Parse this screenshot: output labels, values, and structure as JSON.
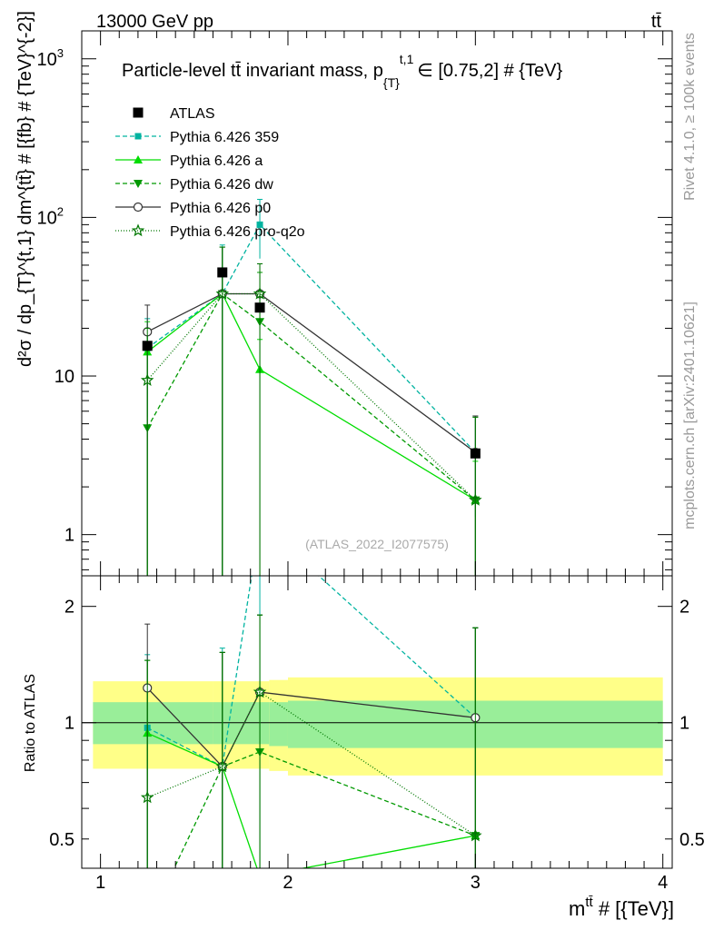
{
  "header": {
    "left": "13000 GeV pp",
    "right": "tt̄"
  },
  "side_labels": {
    "top": "Rivet 4.1.0, ≥ 100k events",
    "bottom": "mcplots.cern.ch [arXiv:2401.10621]"
  },
  "watermark": "(ATLAS_2022_I2077575)",
  "colors": {
    "atlas": "#000000",
    "p359": "#00b3a0",
    "pa": "#00dd00",
    "pdw": "#009900",
    "pp0": "#333333",
    "pq2o": "#007700",
    "band_outer": "#ffff88",
    "band_inner": "#99ee99"
  },
  "chart_data": {
    "type": "scatter",
    "title": "Particle-level tt̄ invariant mass, p_{T}^{t,1} ∈ [0.75,2] # {TeV}",
    "title_main": "Particle-level tt̄ invariant mass, p",
    "title_sub": "{T}",
    "title_sup": "t,1",
    "title_tail": "∈ [0.75,2] # {TeV}",
    "xlabel": "m^{tt̄} # [{TeV}]",
    "xlabel_main": "m",
    "xlabel_sup": "tt̄",
    "xlabel_tail": " # [{TeV}]",
    "ylabel": "d²σ / dp_{T}^{t,1} dm^{tt̄} # [{fb} # {TeV}^{-2}]",
    "ylabel_ratio": "Ratio to ATLAS",
    "xlim": [
      0.9,
      4.05
    ],
    "ylim": [
      0.55,
      1500
    ],
    "ylim_ratio": [
      0.42,
      2.4
    ],
    "x_ticks": [
      {
        "value": 1,
        "label": "1"
      },
      {
        "value": 2,
        "label": "2"
      },
      {
        "value": 3,
        "label": "3"
      },
      {
        "value": 4,
        "label": "4"
      }
    ],
    "y_ticks": [
      {
        "value": 1,
        "label": "1"
      },
      {
        "value": 10,
        "label": "10"
      },
      {
        "value": 100,
        "label": "10",
        "exp": "2"
      },
      {
        "value": 1000,
        "label": "10",
        "exp": "3"
      }
    ],
    "ratio_ticks": [
      {
        "value": 0.5,
        "label": "0.5"
      },
      {
        "value": 1,
        "label": "1"
      },
      {
        "value": 2,
        "label": "2"
      }
    ],
    "bins": [
      {
        "lo": 0.9,
        "hi": 1.6
      },
      {
        "lo": 1.6,
        "hi": 1.9
      },
      {
        "lo": 1.9,
        "hi": 2.0
      },
      {
        "lo": 2.0,
        "hi": 4.0
      }
    ],
    "band_inner": [
      [
        0.88,
        1.13
      ],
      [
        0.88,
        1.13
      ],
      [
        0.87,
        1.13
      ],
      [
        0.86,
        1.14
      ]
    ],
    "band_outer": [
      [
        0.76,
        1.28
      ],
      [
        0.76,
        1.28
      ],
      [
        0.75,
        1.29
      ],
      [
        0.73,
        1.31
      ]
    ],
    "atlas": {
      "name": "ATLAS",
      "x": [
        1.25,
        1.65,
        1.85,
        3.0
      ],
      "y": [
        15.5,
        45,
        27,
        3.25
      ]
    },
    "series": [
      {
        "name": "Pythia 6.426 359",
        "key": "p359",
        "dash": "5,3",
        "marker": "square",
        "x": [
          1.25,
          1.65,
          1.85,
          3.0
        ],
        "y": [
          15,
          33,
          90,
          3.3
        ],
        "err_lo": [
          5.5,
          0.55,
          55,
          1.3
        ],
        "err_hi": [
          23,
          67,
          130,
          5.6
        ],
        "ratio": [
          0.97,
          0.77,
          3.3,
          1.03
        ],
        "ratio_lo": [
          0.4,
          0.42,
          0.42,
          0.42
        ],
        "ratio_hi": [
          1.5,
          1.56,
          2.4,
          1.76
        ]
      },
      {
        "name": "Pythia 6.426 a",
        "key": "pa",
        "dash": "",
        "marker": "triangle",
        "x": [
          1.25,
          1.65,
          1.85,
          3.0
        ],
        "y": [
          14.2,
          33,
          11,
          1.65
        ],
        "err_lo": [
          0.55,
          0.55,
          0.55,
          0.55
        ],
        "err_hi": [
          22,
          65,
          17,
          2.9
        ],
        "ratio": [
          0.94,
          0.77,
          0.4,
          0.51
        ],
        "ratio_lo": [
          0.42,
          0.42,
          0.42,
          0.42
        ],
        "ratio_hi": [
          1.45,
          1.52,
          1.9,
          1.76
        ]
      },
      {
        "name": "Pythia 6.426 dw",
        "key": "pdw",
        "dash": "5,3",
        "marker": "tri-down",
        "x": [
          1.25,
          1.65,
          1.85,
          3.0
        ],
        "y": [
          4.7,
          33,
          22,
          1.65
        ],
        "err_lo": [
          0.55,
          0.55,
          0.55,
          0.55
        ],
        "err_hi": [
          15,
          65,
          45,
          5.5
        ],
        "ratio": [
          0.3,
          0.77,
          0.84,
          0.51
        ],
        "ratio_lo": [
          0.42,
          0.42,
          0.42,
          0.42
        ],
        "ratio_hi": [
          1.45,
          1.52,
          1.9,
          1.76
        ]
      },
      {
        "name": "Pythia 6.426 p0",
        "key": "pp0",
        "dash": "",
        "marker": "circle",
        "x": [
          1.25,
          1.65,
          1.85,
          3.0
        ],
        "y": [
          19,
          33,
          33,
          3.3
        ],
        "err_lo": [
          0.55,
          0.55,
          0.55,
          0.55
        ],
        "err_hi": [
          28,
          65,
          51,
          5.6
        ],
        "ratio": [
          1.23,
          0.77,
          1.2,
          1.03
        ],
        "ratio_lo": [
          0.42,
          0.42,
          0.42,
          0.42
        ],
        "ratio_hi": [
          1.8,
          1.52,
          1.9,
          1.76
        ]
      },
      {
        "name": "Pythia 6.426 pro-q2o",
        "key": "pq2o",
        "dash": "1,2",
        "marker": "star",
        "x": [
          1.25,
          1.65,
          1.85,
          3.0
        ],
        "y": [
          9.4,
          33,
          33,
          1.65
        ],
        "err_lo": [
          0.55,
          0.55,
          0.55,
          0.55
        ],
        "err_hi": [
          20,
          65,
          51,
          5.5
        ],
        "ratio": [
          0.64,
          0.77,
          1.2,
          0.51
        ],
        "ratio_lo": [
          0.42,
          0.42,
          0.42,
          0.42
        ],
        "ratio_hi": [
          1.45,
          1.52,
          1.9,
          1.76
        ]
      }
    ]
  }
}
